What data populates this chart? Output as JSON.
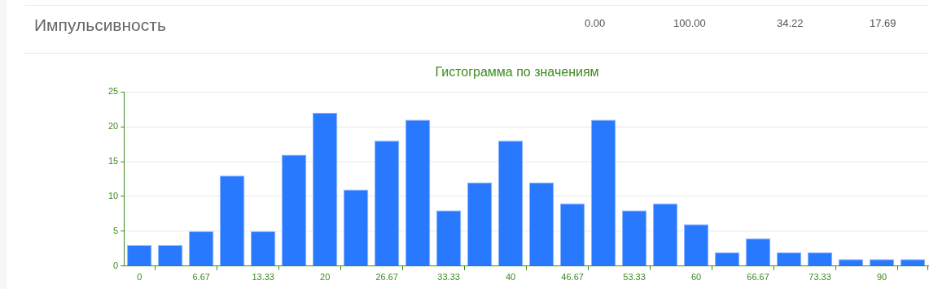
{
  "chart_data": {
    "type": "bar",
    "title": "Гистограмма по значениям",
    "annotations": [
      "Импульсивность",
      "0.00",
      "100.00",
      "34.22",
      "17.69"
    ],
    "categories": [
      "0",
      null,
      "6.67",
      null,
      "13.33",
      null,
      "20",
      null,
      "26.67",
      null,
      "33.33",
      null,
      "40",
      null,
      "46.67",
      null,
      "53.33",
      null,
      "60",
      null,
      "66.67",
      null,
      "73.33",
      null,
      "90",
      null
    ],
    "values": [
      3,
      3,
      5,
      13,
      5,
      16,
      22,
      11,
      18,
      21,
      8,
      12,
      18,
      12,
      9,
      21,
      8,
      9,
      6,
      2,
      4,
      2,
      2,
      1,
      1,
      1
    ],
    "color": "#2979ff",
    "ylim": [
      0,
      25
    ],
    "yticks": [
      0,
      5,
      10,
      15,
      20,
      25
    ],
    "grid": "y",
    "legend": false
  }
}
